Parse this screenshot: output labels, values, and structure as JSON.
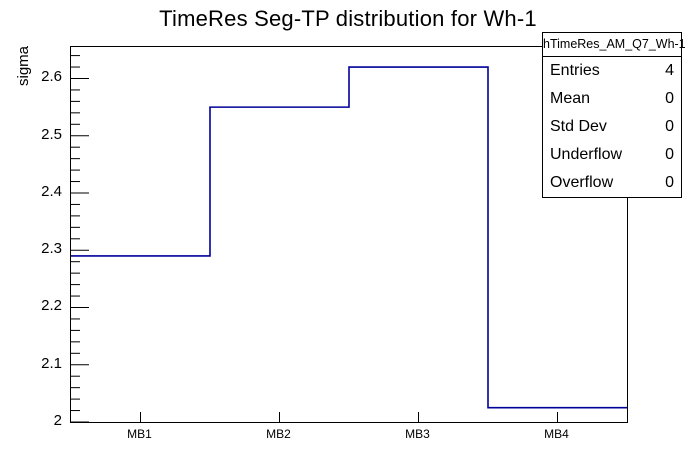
{
  "title": "TimeRes Seg-TP distribution for Wh-1",
  "y_axis": {
    "label": "sigma"
  },
  "stats_box": {
    "title": "hTimeRes_AM_Q7_Wh-1",
    "rows": [
      {
        "label": "Entries",
        "value": "4"
      },
      {
        "label": "Mean",
        "value": "0"
      },
      {
        "label": "Std Dev",
        "value": "0"
      },
      {
        "label": "Underflow",
        "value": "0"
      },
      {
        "label": "Overflow",
        "value": "0"
      }
    ]
  },
  "chart_data": {
    "type": "line",
    "style": "histogram-step",
    "title": "TimeRes Seg-TP distribution for Wh-1",
    "xlabel": "",
    "ylabel": "sigma",
    "categories": [
      "MB1",
      "MB2",
      "MB3",
      "MB4"
    ],
    "values": [
      2.29,
      2.55,
      2.62,
      2.025
    ],
    "ylim": [
      2.0,
      2.655
    ],
    "y_major_ticks": [
      2.0,
      2.1,
      2.2,
      2.3,
      2.4,
      2.5,
      2.6
    ],
    "y_tick_labels": [
      "2",
      "2.1",
      "2.2",
      "2.3",
      "2.4",
      "2.5",
      "2.6"
    ],
    "y_minor_step": 0.02,
    "grid": false,
    "legend_position": "none",
    "line_color": "#000099",
    "frame_color": "#000000",
    "background_color": "#ffffff"
  }
}
